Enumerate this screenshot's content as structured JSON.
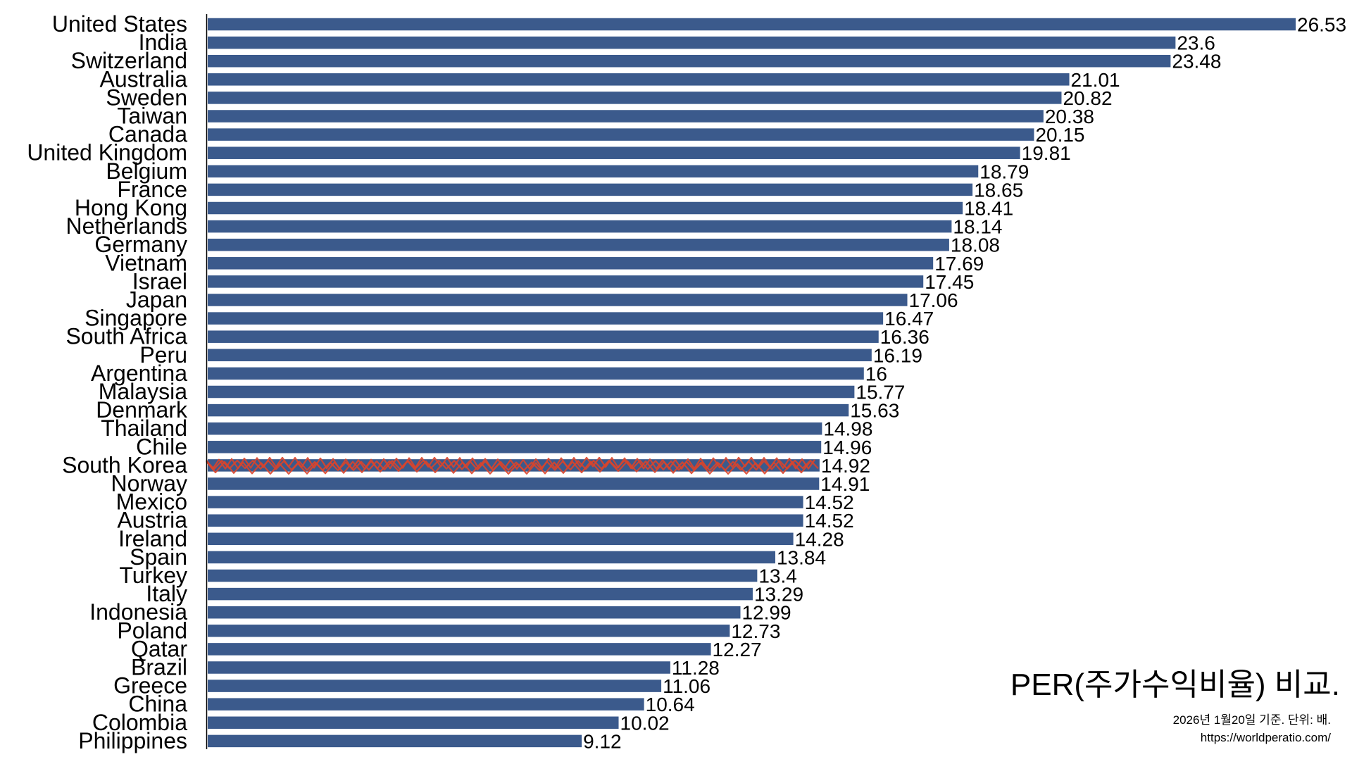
{
  "chart_data": {
    "type": "bar",
    "orientation": "horizontal",
    "title": "PER(주가수익비율) 비교.",
    "note_date": "2026년 1월20일 기준. 단위: 배.",
    "note_source": "https://worldperatio.com/",
    "xlim": [
      0,
      26.53
    ],
    "grid": false,
    "highlight_category": "South Korea",
    "colors": {
      "bar": "#3b5a8c",
      "highlight_scribble": "#d9442b",
      "axis": "#000000"
    },
    "categories": [
      "United States",
      "India",
      "Switzerland",
      "Australia",
      "Sweden",
      "Taiwan",
      "Canada",
      "United Kingdom",
      "Belgium",
      "France",
      "Hong Kong",
      "Netherlands",
      "Germany",
      "Vietnam",
      "Israel",
      "Japan",
      "Singapore",
      "South Africa",
      "Peru",
      "Argentina",
      "Malaysia",
      "Denmark",
      "Thailand",
      "Chile",
      "South Korea",
      "Norway",
      "Mexico",
      "Austria",
      "Ireland",
      "Spain",
      "Turkey",
      "Italy",
      "Indonesia",
      "Poland",
      "Qatar",
      "Brazil",
      "Greece",
      "China",
      "Colombia",
      "Philippines"
    ],
    "values": [
      26.53,
      23.6,
      23.48,
      21.01,
      20.82,
      20.38,
      20.15,
      19.81,
      18.79,
      18.65,
      18.41,
      18.14,
      18.08,
      17.69,
      17.45,
      17.06,
      16.47,
      16.36,
      16.19,
      16,
      15.77,
      15.63,
      14.98,
      14.96,
      14.92,
      14.91,
      14.52,
      14.52,
      14.28,
      13.84,
      13.4,
      13.29,
      12.99,
      12.73,
      12.27,
      11.28,
      11.06,
      10.64,
      10.02,
      9.12
    ],
    "value_labels": [
      "26.53",
      "23.6",
      "23.48",
      "21.01",
      "20.82",
      "20.38",
      "20.15",
      "19.81",
      "18.79",
      "18.65",
      "18.41",
      "18.14",
      "18.08",
      "17.69",
      "17.45",
      "17.06",
      "16.47",
      "16.36",
      "16.19",
      "16",
      "15.77",
      "15.63",
      "14.98",
      "14.96",
      "14.92",
      "14.91",
      "14.52",
      "14.52",
      "14.28",
      "13.84",
      "13.4",
      "13.29",
      "12.99",
      "12.73",
      "12.27",
      "11.28",
      "11.06",
      "10.64",
      "10.02",
      "9.12"
    ]
  }
}
